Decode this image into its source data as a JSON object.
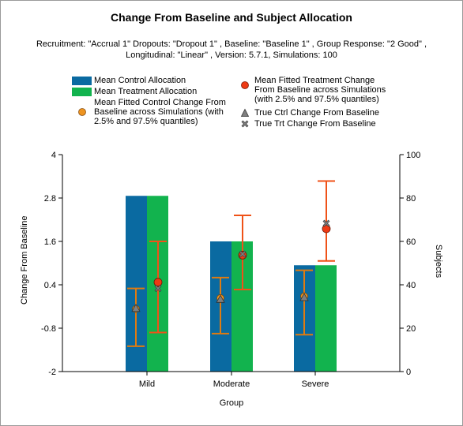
{
  "chart_data": {
    "type": "bar",
    "title": "Change From Baseline and Subject Allocation",
    "subtitle": "Recruitment: \"Accrual 1\" Dropouts: \"Dropout 1\" , Baseline: \"Baseline 1\" , Group Response: \"2 Good\" , Longitudinal: \"Linear\" , Version: 5.7.1, Simulations: 100",
    "xlabel": "Group",
    "ylabel": "Change From Baseline",
    "y2label": "Subjects",
    "categories": [
      "Mild",
      "Moderate",
      "Severe"
    ],
    "ylim": [
      -2,
      4
    ],
    "yticks": [
      "-2",
      "-0.8",
      "0.4",
      "1.6",
      "2.8",
      "4"
    ],
    "yticks_values": [
      -2,
      -0.8,
      0.4,
      1.6,
      2.8,
      4
    ],
    "y2lim": [
      0,
      100
    ],
    "y2ticks": [
      "0",
      "20",
      "40",
      "60",
      "80",
      "100"
    ],
    "y2ticks_values": [
      0,
      20,
      40,
      60,
      80,
      100
    ],
    "grid": false,
    "legend_position": "top",
    "colors": {
      "control_bar": "#0a6aa1",
      "treatment_bar": "#12b34e",
      "control_error": "#e07b10",
      "control_marker": "#ee9420",
      "treatment_error": "#ef5218",
      "treatment_marker": "#ee3a14",
      "true_marker": "#7f7f7f"
    },
    "series": [
      {
        "name": "Mean Control Allocation",
        "kind": "bar",
        "axis": "right",
        "values": [
          81,
          60,
          49
        ]
      },
      {
        "name": "Mean Treatment Allocation",
        "kind": "bar",
        "axis": "right",
        "values": [
          81,
          60,
          49
        ]
      },
      {
        "name": "Mean Fitted Control Change From Baseline across Simulations (with 2.5% and 97.5% quantiles)",
        "kind": "errorbar",
        "axis": "left",
        "values": [
          -0.27,
          0.03,
          0.08
        ],
        "lower": [
          -1.3,
          -0.95,
          -0.98
        ],
        "upper": [
          0.3,
          0.6,
          0.8
        ]
      },
      {
        "name": "Mean Fitted Treatment Change From Baseline across Simulations (with 2.5% and 97.5% quantiles)",
        "kind": "errorbar",
        "axis": "left",
        "values": [
          0.47,
          1.22,
          1.95
        ],
        "lower": [
          -0.92,
          0.27,
          1.06
        ],
        "upper": [
          1.6,
          2.32,
          3.27
        ]
      },
      {
        "name": "True Ctrl Change From Baseline",
        "kind": "marker",
        "axis": "left",
        "values": [
          -0.25,
          0.0,
          0.05
        ]
      },
      {
        "name": "True Trt Change From Baseline",
        "kind": "marker",
        "axis": "left",
        "values": [
          0.3,
          1.25,
          2.1
        ]
      }
    ]
  }
}
